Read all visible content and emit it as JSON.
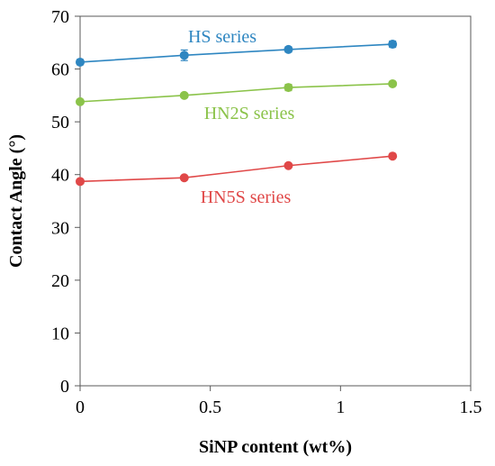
{
  "chart_data": {
    "type": "line",
    "title": "",
    "xlabel": "SiNP content (wt%)",
    "ylabel": "Contact Angle (°)",
    "xlim": [
      0,
      1.5
    ],
    "ylim": [
      0,
      70
    ],
    "x_ticks": [
      0,
      0.5,
      1,
      1.5
    ],
    "x_tick_labels": [
      "0",
      "0.5",
      "1",
      "1.5"
    ],
    "y_ticks": [
      0,
      10,
      20,
      30,
      40,
      50,
      60,
      70
    ],
    "y_tick_labels": [
      "0",
      "10",
      "20",
      "30",
      "40",
      "50",
      "60",
      "70"
    ],
    "grid": false,
    "series": [
      {
        "name": "HS series",
        "color": "#2e86c1",
        "x": [
          0,
          0.4,
          0.8,
          1.2
        ],
        "y": [
          61.3,
          62.6,
          63.7,
          64.7
        ],
        "error": [
          0.5,
          1.0,
          0.5,
          0.6
        ]
      },
      {
        "name": "HN2S series",
        "color": "#8bc34a",
        "x": [
          0,
          0.4,
          0.8,
          1.2
        ],
        "y": [
          53.8,
          55.0,
          56.5,
          57.2
        ],
        "error": [
          0.3,
          0.4,
          0.6,
          0.3
        ]
      },
      {
        "name": "HN5S series",
        "color": "#e04848",
        "x": [
          0,
          0.4,
          0.8,
          1.2
        ],
        "y": [
          38.7,
          39.4,
          41.7,
          43.5
        ],
        "error": [
          0.3,
          0.3,
          0.4,
          0.3
        ]
      }
    ]
  }
}
